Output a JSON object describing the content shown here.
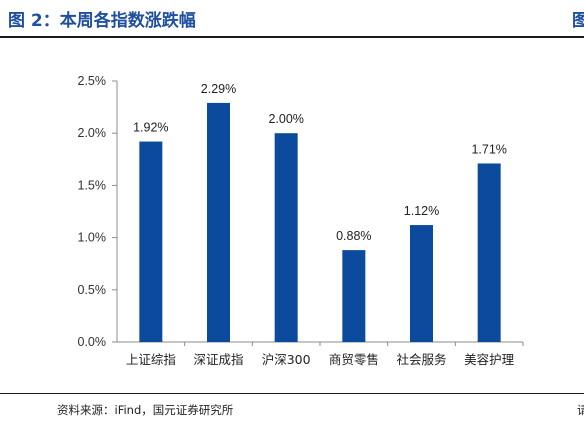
{
  "figure": {
    "title": "图 2：本周各指数涨跌幅",
    "title_cut_char": "图",
    "source": "资料来源：iFind，国元证券研究所",
    "source_cut_char": "请"
  },
  "chart_data": {
    "type": "bar",
    "categories": [
      "上证综指",
      "深证成指",
      "沪深300",
      "商贸零售",
      "社会服务",
      "美容护理"
    ],
    "values": [
      1.92,
      2.29,
      2.0,
      0.88,
      1.12,
      1.71
    ],
    "data_labels": [
      "1.92%",
      "2.29%",
      "2.00%",
      "0.88%",
      "1.12%",
      "1.71%"
    ],
    "y_ticks": [
      0,
      0.5,
      1.0,
      1.5,
      2.0,
      2.5
    ],
    "y_tick_labels": [
      "0.0%",
      "0.5%",
      "1.0%",
      "1.5%",
      "2.0%",
      "2.5%"
    ],
    "ylim": [
      0,
      2.5
    ],
    "grid": false,
    "bar_color": "#0b4a9c",
    "title": "",
    "xlabel": "",
    "ylabel": ""
  }
}
